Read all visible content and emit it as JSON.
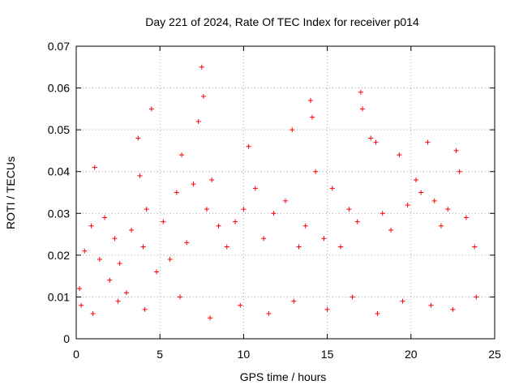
{
  "chart_data": {
    "type": "scatter",
    "title": "Day 221 of 2024, Rate Of TEC Index for receiver p014",
    "xlabel": "GPS time / hours",
    "ylabel": "ROTI / TECUs",
    "xlim": [
      0,
      25
    ],
    "ylim": [
      0,
      0.07
    ],
    "xticks": [
      "0",
      "5",
      "10",
      "15",
      "20",
      "25"
    ],
    "yticks": [
      "0",
      "0.01",
      "0.02",
      "0.03",
      "0.04",
      "0.05",
      "0.06",
      "0.07"
    ],
    "grid": true,
    "marker": "+",
    "color": "#ff0000",
    "series": [
      {
        "name": "ROTI",
        "points": [
          [
            0.2,
            0.012
          ],
          [
            0.5,
            0.021
          ],
          [
            0.9,
            0.027
          ],
          [
            1.1,
            0.041
          ],
          [
            1.4,
            0.019
          ],
          [
            1.7,
            0.029
          ],
          [
            2.0,
            0.014
          ],
          [
            2.3,
            0.024
          ],
          [
            2.6,
            0.018
          ],
          [
            3.0,
            0.011
          ],
          [
            3.3,
            0.026
          ],
          [
            3.7,
            0.048
          ],
          [
            3.8,
            0.039
          ],
          [
            4.0,
            0.022
          ],
          [
            4.2,
            0.031
          ],
          [
            4.5,
            0.055
          ],
          [
            4.8,
            0.016
          ],
          [
            5.2,
            0.028
          ],
          [
            5.6,
            0.019
          ],
          [
            6.0,
            0.035
          ],
          [
            6.3,
            0.044
          ],
          [
            6.6,
            0.023
          ],
          [
            7.0,
            0.037
          ],
          [
            7.3,
            0.052
          ],
          [
            7.5,
            0.065
          ],
          [
            7.6,
            0.058
          ],
          [
            7.8,
            0.031
          ],
          [
            8.1,
            0.038
          ],
          [
            8.5,
            0.027
          ],
          [
            9.0,
            0.022
          ],
          [
            9.5,
            0.028
          ],
          [
            10.0,
            0.031
          ],
          [
            10.3,
            0.046
          ],
          [
            10.7,
            0.036
          ],
          [
            11.2,
            0.024
          ],
          [
            11.8,
            0.03
          ],
          [
            12.5,
            0.033
          ],
          [
            12.9,
            0.05
          ],
          [
            13.3,
            0.022
          ],
          [
            13.7,
            0.027
          ],
          [
            14.0,
            0.057
          ],
          [
            14.1,
            0.053
          ],
          [
            14.3,
            0.04
          ],
          [
            14.8,
            0.024
          ],
          [
            15.3,
            0.036
          ],
          [
            15.8,
            0.022
          ],
          [
            16.3,
            0.031
          ],
          [
            16.8,
            0.028
          ],
          [
            17.0,
            0.059
          ],
          [
            17.1,
            0.055
          ],
          [
            17.6,
            0.048
          ],
          [
            17.9,
            0.047
          ],
          [
            18.3,
            0.03
          ],
          [
            18.8,
            0.026
          ],
          [
            19.3,
            0.044
          ],
          [
            19.8,
            0.032
          ],
          [
            20.3,
            0.038
          ],
          [
            20.6,
            0.035
          ],
          [
            21.0,
            0.047
          ],
          [
            21.4,
            0.033
          ],
          [
            21.8,
            0.027
          ],
          [
            22.2,
            0.031
          ],
          [
            22.7,
            0.045
          ],
          [
            22.9,
            0.04
          ],
          [
            23.3,
            0.029
          ],
          [
            23.8,
            0.022
          ],
          [
            0.3,
            0.008
          ],
          [
            1.0,
            0.006
          ],
          [
            2.5,
            0.009
          ],
          [
            4.1,
            0.007
          ],
          [
            6.2,
            0.01
          ],
          [
            8.0,
            0.005
          ],
          [
            9.8,
            0.008
          ],
          [
            11.5,
            0.006
          ],
          [
            13.0,
            0.009
          ],
          [
            15.0,
            0.007
          ],
          [
            16.5,
            0.01
          ],
          [
            18.0,
            0.006
          ],
          [
            19.5,
            0.009
          ],
          [
            21.2,
            0.008
          ],
          [
            22.5,
            0.007
          ],
          [
            23.9,
            0.01
          ]
        ]
      }
    ]
  }
}
